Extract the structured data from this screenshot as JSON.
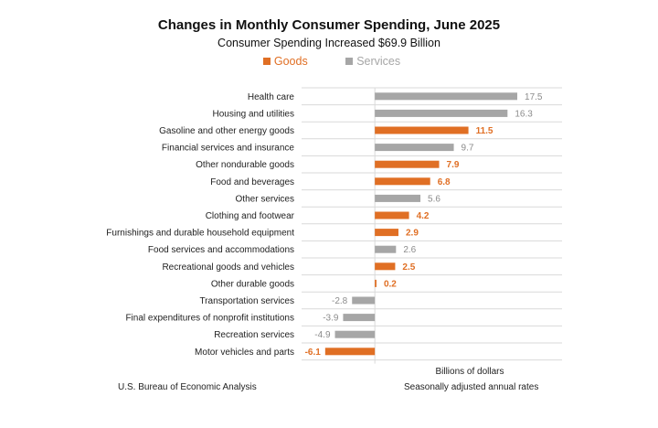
{
  "chart_data": {
    "type": "bar",
    "orientation": "horizontal",
    "title": "Changes in Monthly Consumer Spending, June 2025",
    "subtitle": "Consumer Spending Increased $69.9 Billion",
    "xlabel": "Billions of dollars",
    "xlim": [
      -9,
      23
    ],
    "grid": "horizontal lines between rows",
    "legend": [
      {
        "name": "Goods",
        "color": "#e06f24"
      },
      {
        "name": "Services",
        "color": "#a6a6a6"
      }
    ],
    "categories": [
      "Health care",
      "Housing and utilities",
      "Gasoline and other energy goods",
      "Financial services and insurance",
      "Other nondurable goods",
      "Food and beverages",
      "Other services",
      "Clothing and footwear",
      "Furnishings and durable household equipment",
      "Food services and accommodations",
      "Recreational goods and vehicles",
      "Other durable goods",
      "Transportation services",
      "Final expenditures of nonprofit institutions",
      "Recreation services",
      "Motor vehicles and parts"
    ],
    "values": [
      17.5,
      16.3,
      11.5,
      9.7,
      7.9,
      6.8,
      5.6,
      4.2,
      2.9,
      2.6,
      2.5,
      0.2,
      -2.8,
      -3.9,
      -4.9,
      -6.1
    ],
    "groups": [
      "Services",
      "Services",
      "Goods",
      "Services",
      "Goods",
      "Goods",
      "Services",
      "Goods",
      "Goods",
      "Services",
      "Goods",
      "Goods",
      "Services",
      "Services",
      "Services",
      "Goods"
    ]
  },
  "footer": {
    "source": "U.S. Bureau of Economic Analysis",
    "note": "Seasonally adjusted annual rates"
  },
  "colors": {
    "goods": "#e06f24",
    "services": "#a6a6a6",
    "services_label": "#8c8c8c",
    "grid": "#d9d9d9"
  }
}
